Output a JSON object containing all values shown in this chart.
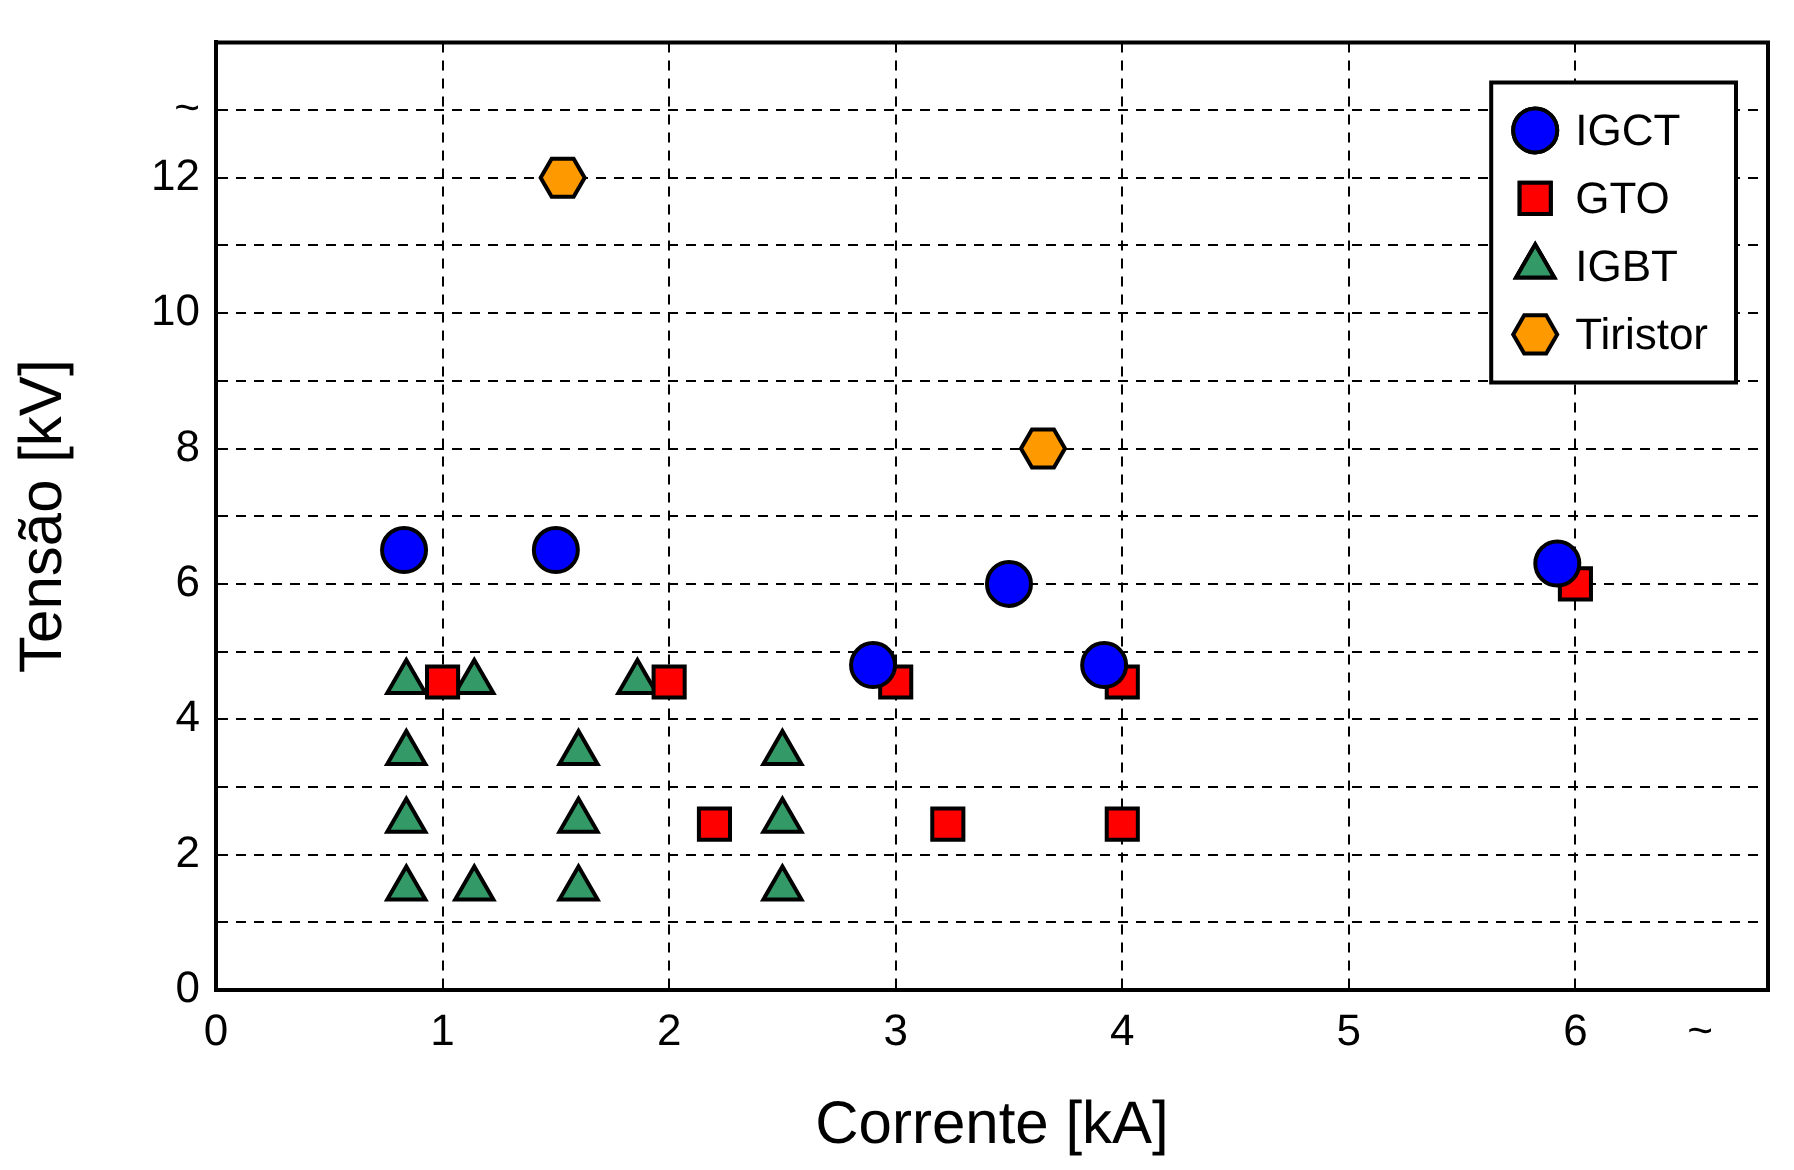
{
  "chart_data": {
    "type": "scatter",
    "xlabel": "Corrente [kA]",
    "ylabel": "Tensão [kV]",
    "xlim": [
      0,
      6.85
    ],
    "ylim": [
      0,
      14
    ],
    "xticks": [
      0,
      1,
      2,
      3,
      4,
      5,
      6,
      {
        "value": 6.55,
        "label": "~"
      }
    ],
    "yticks": [
      0,
      {
        "value": 1,
        "label": null
      },
      2,
      {
        "value": 3,
        "label": null
      },
      4,
      {
        "value": 5,
        "label": null
      },
      6,
      {
        "value": 7,
        "label": null
      },
      8,
      {
        "value": 9,
        "label": null
      },
      10,
      {
        "value": 11,
        "label": null
      },
      12,
      {
        "value": 13,
        "label": "~"
      }
    ],
    "grid": true,
    "legend": "top right",
    "series": [
      {
        "name": "IGCT",
        "color": "#0000ff",
        "marker": "circle",
        "x": [
          0.83,
          1.5,
          2.9,
          3.5,
          3.92,
          5.92
        ],
        "values": [
          6.5,
          6.5,
          4.8,
          6.0,
          4.8,
          6.3
        ]
      },
      {
        "name": "GTO",
        "color": "#ff0000",
        "marker": "square",
        "x": [
          1.0,
          2.0,
          3.0,
          4.0,
          2.2,
          3.23,
          4.0,
          6.0
        ],
        "values": [
          4.55,
          4.55,
          4.55,
          4.55,
          2.45,
          2.45,
          2.45,
          6.0
        ]
      },
      {
        "name": "IGBT",
        "color": "#339966",
        "marker": "triangle",
        "x": [
          0.84,
          1.14,
          1.86,
          0.84,
          1.6,
          2.5,
          0.84,
          1.6,
          2.5,
          0.84,
          1.14,
          1.6,
          2.5
        ],
        "values": [
          4.55,
          4.55,
          4.55,
          3.5,
          3.5,
          3.5,
          2.5,
          2.5,
          2.5,
          1.5,
          1.5,
          1.5,
          1.5
        ]
      },
      {
        "name": "Tiristor",
        "color": "#ff9900",
        "x": [
          1.53,
          3.65
        ],
        "values": [
          12,
          8
        ]
      }
    ]
  }
}
